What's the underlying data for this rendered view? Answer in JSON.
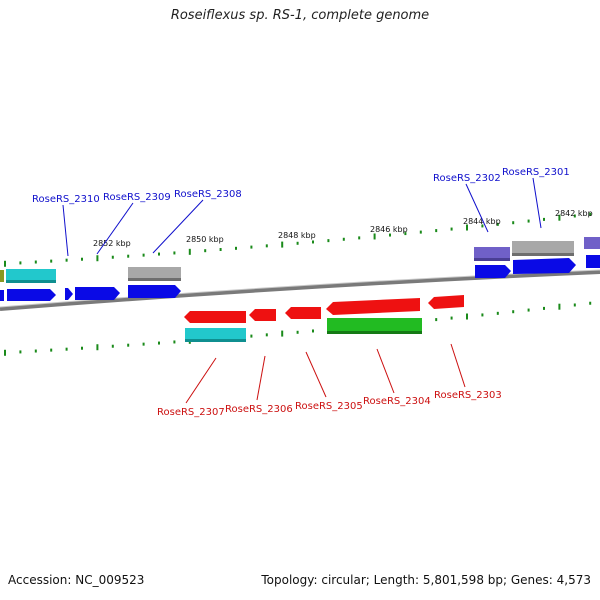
{
  "title": "Roseiflexus sp. RS-1, complete genome",
  "footer": {
    "accession": "Accession: NC_009523",
    "summary": "Topology: circular; Length: 5,801,598 bp; Genes: 4,573"
  },
  "colors": {
    "forward_label": "#1010cc",
    "reverse_label": "#cc1010",
    "backbone": "#7a7a7a",
    "tick": "#1a8a1a",
    "cds_forward": "#0a0ae6",
    "cds_reverse": "#ee1111",
    "rna": "#22c8cc",
    "gray_feature": "#a8a8a8",
    "purple_feature": "#7060c8",
    "green_feature": "#22bb22"
  },
  "scale_labels": [
    "2852 kbp",
    "2850 kbp",
    "2848 kbp",
    "2846 kbp",
    "2844 kbp",
    "2842 kbp"
  ],
  "forward_genes": [
    "RoseRS_2310",
    "RoseRS_2309",
    "RoseRS_2308",
    "RoseRS_2302",
    "RoseRS_2301"
  ],
  "reverse_genes": [
    "RoseRS_2307",
    "RoseRS_2306",
    "RoseRS_2305",
    "RoseRS_2304",
    "RoseRS_2303"
  ]
}
